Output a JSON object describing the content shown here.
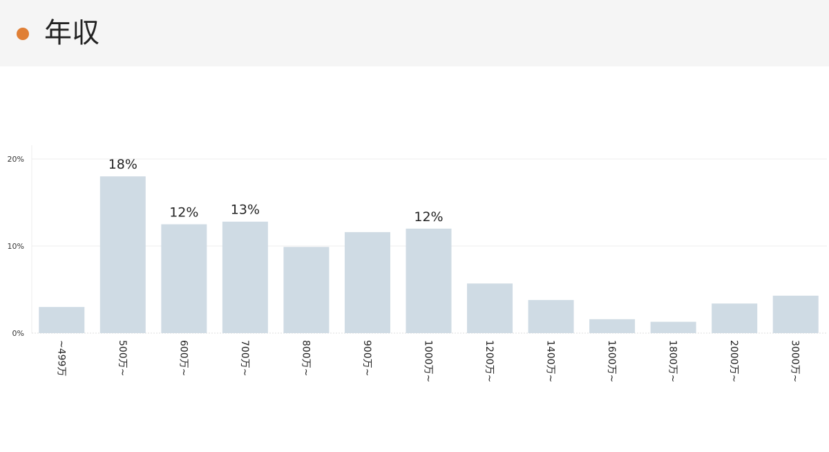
{
  "header": {
    "title": "年収",
    "accent_color": "#e07f35"
  },
  "chart_data": {
    "type": "bar",
    "categories": [
      "~499万",
      "500万~",
      "600万~",
      "700万~",
      "800万~",
      "900万~",
      "1000万~",
      "1200万~",
      "1400万~",
      "1600万~",
      "1800万~",
      "2000万~",
      "3000万~"
    ],
    "values": [
      3,
      18,
      12.5,
      12.8,
      9.9,
      11.6,
      12,
      5.7,
      3.8,
      1.6,
      1.3,
      3.4,
      4.3
    ],
    "data_labels": {
      "1": "18%",
      "2": "12%",
      "3": "13%",
      "6": "12%"
    },
    "ylim": [
      0,
      20
    ],
    "yticks": [
      "0%",
      "10%",
      "20%"
    ],
    "ytick_values": [
      0,
      10,
      20
    ],
    "grid": true,
    "bar_color": "#cfdbe4",
    "title": "",
    "xlabel": "",
    "ylabel": ""
  }
}
